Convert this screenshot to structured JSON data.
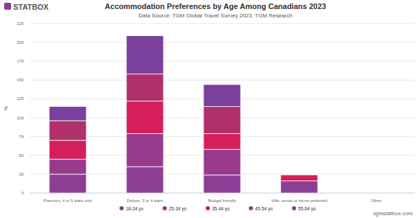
{
  "chart_data": {
    "type": "bar",
    "stacked": true,
    "title": "Accommodation Preferences by Age Among Canadians 2023",
    "subtitle": "Data Source: TGM Global Travel Survey 2023, TGM Research",
    "logo": "STATBOX",
    "credit": "tgmstatbox.com",
    "y_label": "%",
    "categories": [
      "Premium, 4 or 5 stars only",
      "Deluxe, 3 or 4 stars",
      "Budget friendly",
      "Villa, condo or home preferred",
      "Other"
    ],
    "series": [
      {
        "name": "18-24 yo",
        "color": "#7b3f9e",
        "values": [
          19,
          51,
          29,
          0,
          0
        ]
      },
      {
        "name": "25-34 yo",
        "color": "#b0306a",
        "values": [
          26,
          36,
          36,
          0,
          0
        ]
      },
      {
        "name": "35-44 yo",
        "color": "#d41f5b",
        "values": [
          25,
          43,
          21,
          8,
          0
        ]
      },
      {
        "name": "45-54 yo",
        "color": "#973a8c",
        "values": [
          20,
          44,
          34,
          0,
          0
        ]
      },
      {
        "name": "55-64 yo",
        "color": "#8c3e95",
        "values": [
          25,
          35,
          24,
          16,
          0
        ]
      }
    ],
    "ylim": [
      0,
      225
    ],
    "yticks": [
      0,
      25,
      50,
      75,
      100,
      125,
      150,
      175,
      200,
      225
    ],
    "grid": true,
    "legend": "bottom"
  }
}
